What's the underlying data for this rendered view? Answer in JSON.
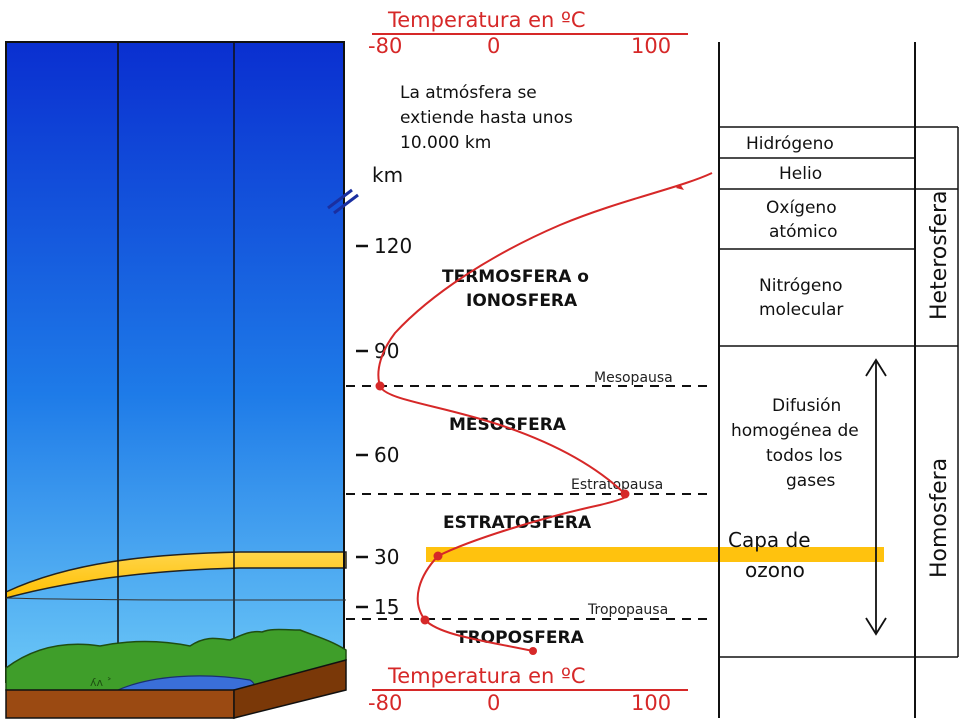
{
  "temperature_axis": {
    "label": "Temperatura en ºC",
    "ticks": [
      "-80",
      "0",
      "100"
    ]
  },
  "intro_text": [
    "La atmósfera se",
    "extiende hasta unos",
    "10.000 km"
  ],
  "altitude_axis": {
    "unit": "km",
    "ticks": [
      "120",
      "90",
      "60",
      "30",
      "15"
    ]
  },
  "layers": {
    "termosfera": [
      "TERMOSFERA o",
      "IONOSFERA"
    ],
    "mesosfera": "MESOSFERA",
    "estratosfera": "ESTRATOSFERA",
    "troposfera": "TROPOSFERA"
  },
  "pauses": {
    "mesopausa": "Mesopausa",
    "estratopausa": "Estratopausa",
    "tropopausa": "Tropopausa"
  },
  "ozone_label": [
    "Capa de",
    "ozono"
  ],
  "composition": {
    "heterosfera_label": "Heterosfera",
    "homosfera_label": "Homosfera",
    "cells": {
      "hidrogeno": "Hidrógeno",
      "helio": "Helio",
      "oxigeno": [
        "Oxígeno",
        "atómico"
      ],
      "nitrogeno": [
        "Nitrógeno",
        "molecular"
      ],
      "difusion": [
        "Difusión",
        "homogénea de",
        "todos los",
        "gases"
      ]
    }
  },
  "colors": {
    "sky_top": "#0a2fd0",
    "sky_bottom": "#5fc0f5",
    "ozone": "#ffc20e",
    "curve": "#d62828",
    "ground": "#3f9e2a",
    "soil": "#9b4a12"
  }
}
